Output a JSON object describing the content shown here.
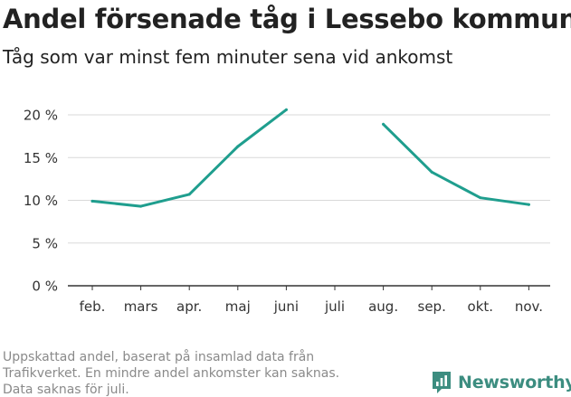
{
  "header": {
    "title": "Andel försenade tåg i Lessebo kommun",
    "subtitle": "Tåg som var minst fem minuter sena vid ankomst"
  },
  "footer": {
    "note_lines": [
      "Uppskattad andel, baserat på insamlad data från",
      "Trafikverket. En mindre andel ankomster kan saknas.",
      "Data saknas för juli."
    ],
    "brand": "Newsworthy",
    "brand_icon": "newsworthy-logo-icon"
  },
  "colors": {
    "line": "#1f9e8e",
    "grid": "#d9d9d9",
    "axis": "#333333",
    "brand": "#3c8d80"
  },
  "chart_data": {
    "type": "line",
    "categories": [
      "feb.",
      "mars",
      "apr.",
      "maj",
      "juni",
      "juli",
      "aug.",
      "sep.",
      "okt.",
      "nov."
    ],
    "series": [
      {
        "values": [
          9.9,
          9.3,
          10.7,
          16.3,
          20.6,
          null,
          18.9,
          13.3,
          10.3,
          9.5
        ]
      }
    ],
    "ylim": [
      0,
      20
    ],
    "yticks": [
      0,
      5,
      10,
      15,
      20
    ],
    "ytick_labels": [
      "0 %",
      "5 %",
      "10 %",
      "15 %",
      "20 %"
    ],
    "xlabel": "",
    "ylabel": "",
    "grid": true,
    "legend": "none"
  }
}
